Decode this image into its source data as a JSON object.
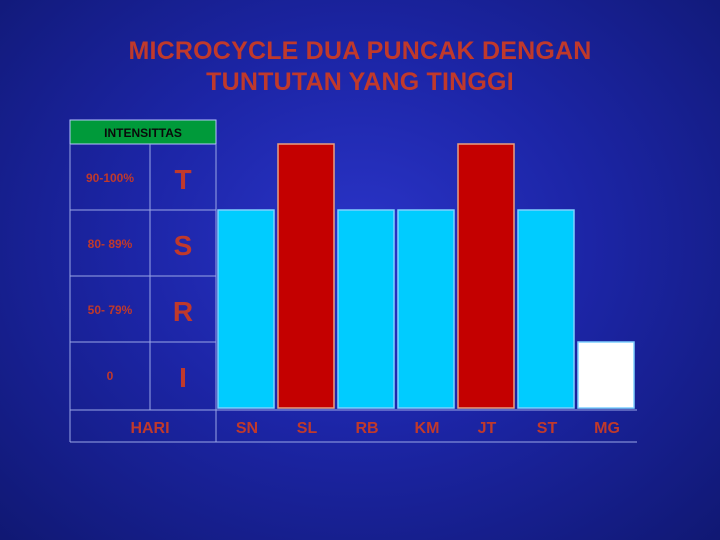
{
  "title": {
    "line1": "MICROCYCLE DUA PUNCAK DENGAN",
    "line2": "TUNTUTAN YANG TINGGI"
  },
  "colors": {
    "text_red": "#c0392b",
    "bar_high": "#c40000",
    "bar_mid": "#00ccff",
    "bar_low": "#ffffff",
    "header_green": "#009a3a"
  },
  "chart_data": {
    "type": "bar",
    "title": "MICROCYCLE DUA PUNCAK DENGAN TUNTUTAN YANG TINGGI",
    "legend_header": "INTENSITTAS",
    "levels": [
      {
        "range": "90-100%",
        "code": "T",
        "value": 4
      },
      {
        "range": "80- 89%",
        "code": "S",
        "value": 3
      },
      {
        "range": "50- 79%",
        "code": "R",
        "value": 2
      },
      {
        "range": "0",
        "code": "I",
        "value": 1
      }
    ],
    "xlabel": "HARI",
    "categories": [
      "SN",
      "SL",
      "RB",
      "KM",
      "JT",
      "ST",
      "MG"
    ],
    "values": [
      3,
      4,
      3,
      3,
      4,
      3,
      1
    ],
    "ylim": [
      0,
      4
    ]
  }
}
